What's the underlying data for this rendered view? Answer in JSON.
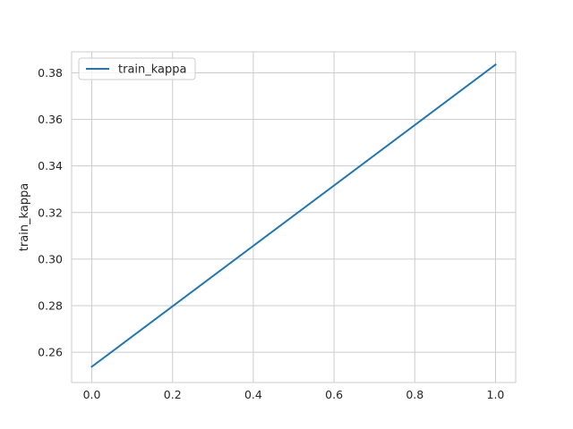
{
  "chart_data": {
    "type": "line",
    "title": "",
    "xlabel": "",
    "ylabel": "train_kappa",
    "xlim": [
      -0.05,
      1.05
    ],
    "ylim": [
      0.247,
      0.389
    ],
    "x_ticks": [
      0.0,
      0.2,
      0.4,
      0.6,
      0.8,
      1.0
    ],
    "x_tick_labels": [
      "0.0",
      "0.2",
      "0.4",
      "0.6",
      "0.8",
      "1.0"
    ],
    "y_ticks": [
      0.26,
      0.28,
      0.3,
      0.32,
      0.34,
      0.36,
      0.38
    ],
    "y_tick_labels": [
      "0.26",
      "0.28",
      "0.30",
      "0.32",
      "0.34",
      "0.36",
      "0.38"
    ],
    "grid": true,
    "legend": {
      "position": "top-left"
    },
    "series": [
      {
        "name": "train_kappa",
        "color": "#1f77b4",
        "x": [
          0.0,
          1.0
        ],
        "y": [
          0.2538,
          0.3835
        ]
      }
    ]
  }
}
